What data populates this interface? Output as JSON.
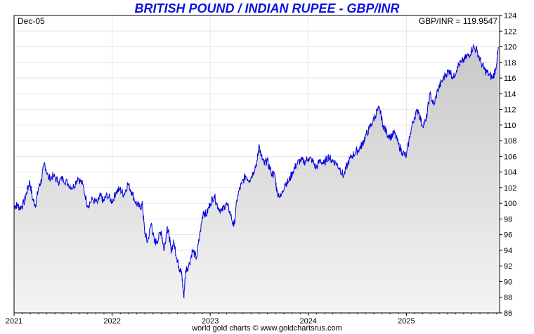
{
  "header": {
    "title": "BRITISH POUND / INDIAN RUPEE - GBP/INR",
    "title_color": "#1010e0"
  },
  "chart_data": {
    "type": "area",
    "title": "BRITISH POUND / INDIAN RUPEE - GBP/INR",
    "period_label": "Dec-05",
    "readout": "GBP/INR = 119.9547",
    "last_value": 119.9547,
    "xlabel": "",
    "ylabel": "",
    "xlim": [
      2021.0,
      2025.95
    ],
    "ylim": [
      86,
      124
    ],
    "x_ticks": [
      "2021",
      "2022",
      "2023",
      "2024",
      "2025"
    ],
    "y_ticks": [
      86,
      88,
      90,
      92,
      94,
      96,
      98,
      100,
      102,
      104,
      106,
      108,
      110,
      112,
      114,
      116,
      118,
      120,
      122,
      124
    ],
    "grid": true,
    "line_color": "#0000dd",
    "fill_color_top": "#c8c8c8",
    "fill_color_bottom": "#f4f4f4",
    "series": [
      {
        "x": [
          2021.0,
          2021.03,
          2021.06,
          2021.1,
          2021.13,
          2021.16,
          2021.19,
          2021.22,
          2021.25,
          2021.28,
          2021.31,
          2021.35,
          2021.4,
          2021.45,
          2021.5,
          2021.55,
          2021.6,
          2021.65,
          2021.7,
          2021.75,
          2021.8,
          2021.85,
          2021.88,
          2021.91,
          2021.95,
          2022.0,
          2022.04,
          2022.08,
          2022.12,
          2022.16,
          2022.2,
          2022.24,
          2022.28,
          2022.31,
          2022.33,
          2022.36,
          2022.4,
          2022.43,
          2022.46,
          2022.5,
          2022.53,
          2022.56,
          2022.58,
          2022.6,
          2022.63,
          2022.66,
          2022.68,
          2022.69,
          2022.71,
          2022.73,
          2022.75,
          2022.78,
          2022.82,
          2022.86,
          2022.9,
          2022.93,
          2022.96,
          2023.0,
          2023.04,
          2023.08,
          2023.12,
          2023.16,
          2023.2,
          2023.24,
          2023.28,
          2023.32,
          2023.36,
          2023.4,
          2023.44,
          2023.48,
          2023.5,
          2023.52,
          2023.55,
          2023.58,
          2023.62,
          2023.66,
          2023.68,
          2023.72,
          2023.76,
          2023.8,
          2023.84,
          2023.88,
          2023.92,
          2023.96,
          2024.0,
          2024.04,
          2024.08,
          2024.12,
          2024.16,
          2024.2,
          2024.24,
          2024.28,
          2024.32,
          2024.36,
          2024.4,
          2024.44,
          2024.48,
          2024.52,
          2024.55,
          2024.58,
          2024.62,
          2024.66,
          2024.7,
          2024.73,
          2024.76,
          2024.8,
          2024.84,
          2024.88,
          2024.92,
          2024.96,
          2025.0,
          2025.04,
          2025.08,
          2025.12,
          2025.16,
          2025.2,
          2025.24,
          2025.28,
          2025.32,
          2025.36,
          2025.4,
          2025.44,
          2025.48,
          2025.52,
          2025.56,
          2025.6,
          2025.64,
          2025.68,
          2025.72,
          2025.76,
          2025.8,
          2025.84,
          2025.88,
          2025.91,
          2025.94
        ],
        "y": [
          99.6,
          99.8,
          99.4,
          100.0,
          101.5,
          102.8,
          100.5,
          99.8,
          102.0,
          103.0,
          105.2,
          103.2,
          103.5,
          102.8,
          103.2,
          102.5,
          102.0,
          103.3,
          102.4,
          99.7,
          100.5,
          100.0,
          101.0,
          100.2,
          101.1,
          100.2,
          101.5,
          101.8,
          101.1,
          102.5,
          101.5,
          100.1,
          99.5,
          99.8,
          96.5,
          95.0,
          97.5,
          95.0,
          95.2,
          96.5,
          94.0,
          97.0,
          96.0,
          94.0,
          95.0,
          93.0,
          92.0,
          91.5,
          91.0,
          88.0,
          91.5,
          92.0,
          94.0,
          93.0,
          96.5,
          99.0,
          98.5,
          100.0,
          101.0,
          99.5,
          99.0,
          100.0,
          99.0,
          97.0,
          101.0,
          102.5,
          103.5,
          103.0,
          104.0,
          105.5,
          107.5,
          106.0,
          105.0,
          105.5,
          104.0,
          103.5,
          101.5,
          100.8,
          102.5,
          102.8,
          104.0,
          105.0,
          105.5,
          105.3,
          105.8,
          105.5,
          104.5,
          105.5,
          105.0,
          106.0,
          105.5,
          105.2,
          104.5,
          103.5,
          105.0,
          106.0,
          106.5,
          107.0,
          107.5,
          108.5,
          109.5,
          110.5,
          111.8,
          112.0,
          110.0,
          109.0,
          108.5,
          109.0,
          107.5,
          106.5,
          106.0,
          109.0,
          111.0,
          112.0,
          110.0,
          110.5,
          114.0,
          112.5,
          114.5,
          115.5,
          116.5,
          117.0,
          116.0,
          117.5,
          118.0,
          118.5,
          119.0,
          120.0,
          119.5,
          118.0,
          117.0,
          116.5,
          116.0,
          117.2,
          119.9547
        ]
      }
    ]
  },
  "footer": {
    "credit": "world gold charts © www.goldchartsrus.com"
  }
}
